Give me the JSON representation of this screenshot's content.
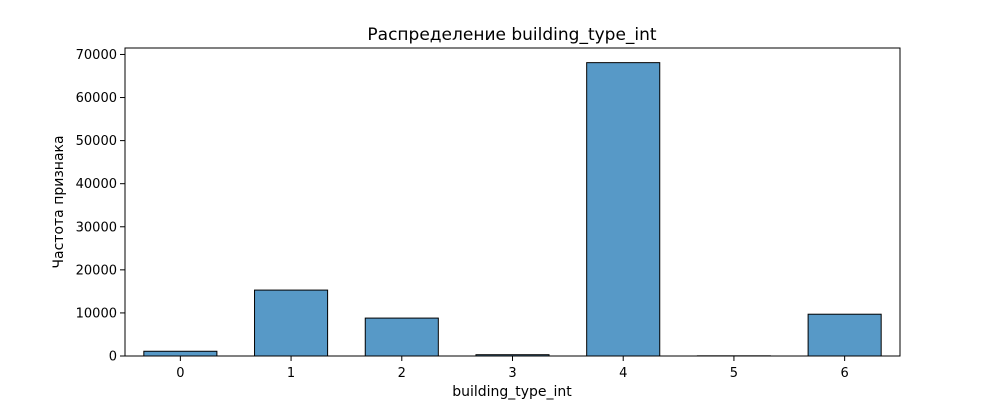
{
  "chart_data": {
    "type": "bar",
    "title": "Распределение building_type_int",
    "xlabel": "building_type_int",
    "ylabel": "Частота признака",
    "categories": [
      0,
      1,
      2,
      3,
      4,
      5,
      6
    ],
    "values": [
      1100,
      15300,
      8800,
      300,
      68100,
      40,
      9700
    ],
    "ylim": [
      0,
      71500
    ],
    "yticks": [
      0,
      10000,
      20000,
      30000,
      40000,
      50000,
      60000,
      70000
    ],
    "xticks": [
      "0",
      "1",
      "2",
      "3",
      "4",
      "5",
      "6"
    ],
    "bar_color": "#5799c7",
    "edge_color": "#000000",
    "grid": false,
    "legend": "none"
  }
}
